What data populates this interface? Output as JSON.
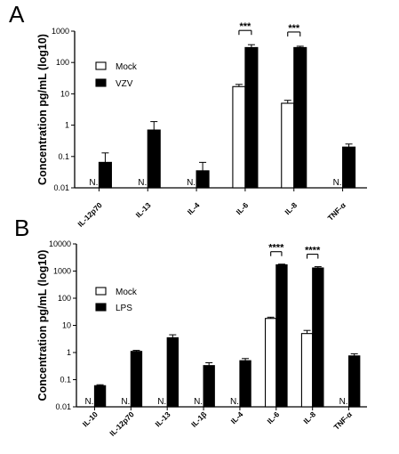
{
  "chart_data": [
    {
      "panel": "A",
      "type": "bar",
      "ylabel": "Concentration pg/mL (log10)",
      "yscale": "log",
      "ylim": [
        0.01,
        1000
      ],
      "yticks": [
        "0.01",
        "0.1",
        "1",
        "10",
        "100",
        "1000"
      ],
      "categories": [
        "IL-12p70",
        "IL-13",
        "IL-4",
        "IL-6",
        "IL-8",
        "TNF-α"
      ],
      "legend_position": "upper-left",
      "series": [
        {
          "name": "Mock",
          "fill": "#ffffff",
          "values": [
            null,
            null,
            null,
            17,
            5,
            null
          ],
          "errors": [
            null,
            null,
            null,
            20,
            6.2,
            null
          ],
          "nd_label": [
            "N.D.",
            "N.D.",
            "N.D.",
            null,
            null,
            "N.D."
          ]
        },
        {
          "name": "VZV",
          "fill": "#000000",
          "values": [
            0.065,
            0.7,
            0.035,
            300,
            300,
            0.2
          ],
          "errors": [
            0.13,
            1.3,
            0.065,
            370,
            330,
            0.25
          ]
        }
      ],
      "significance": [
        {
          "category": "IL-6",
          "label": "***"
        },
        {
          "category": "IL-8",
          "label": "***"
        }
      ]
    },
    {
      "panel": "B",
      "type": "bar",
      "ylabel": "Concentration pg/mL (log10)",
      "yscale": "log",
      "ylim": [
        0.01,
        10000
      ],
      "yticks": [
        "0.01",
        "0.1",
        "1",
        "10",
        "100",
        "1000",
        "10000"
      ],
      "categories": [
        "IL-10",
        "IL-12p70",
        "IL-13",
        "IL-1β",
        "IL-4",
        "IL-6",
        "IL-8",
        "TNF-α"
      ],
      "legend_position": "upper-left",
      "series": [
        {
          "name": "Mock",
          "fill": "#ffffff",
          "values": [
            null,
            null,
            null,
            null,
            null,
            18,
            5,
            null
          ],
          "errors": [
            null,
            null,
            null,
            null,
            null,
            20,
            6.5,
            null
          ],
          "nd_label": [
            "N.D.",
            "N.D.",
            "N.D.",
            "N.D.",
            "N.D.",
            null,
            null,
            "N.D."
          ]
        },
        {
          "name": "LPS",
          "fill": "#000000",
          "values": [
            0.06,
            1.1,
            3.5,
            0.33,
            0.5,
            1700,
            1300,
            0.75
          ],
          "errors": [
            0.065,
            1.2,
            4.5,
            0.42,
            0.6,
            1800,
            1450,
            0.9
          ]
        }
      ],
      "significance": [
        {
          "category": "IL-6",
          "label": "****"
        },
        {
          "category": "IL-8",
          "label": "****"
        }
      ]
    }
  ]
}
